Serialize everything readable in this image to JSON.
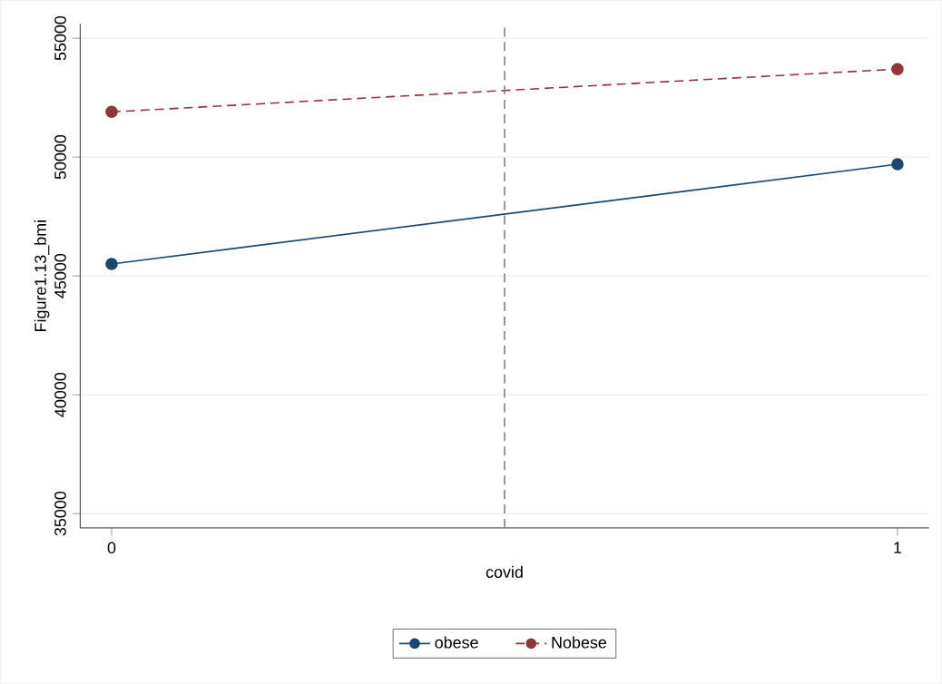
{
  "chart_data": {
    "type": "line",
    "xlabel": "covid",
    "ylabel": "Figure1.13_bmi",
    "x": [
      0,
      1
    ],
    "series": [
      {
        "name": "obese",
        "color": "#1a476f",
        "values": [
          45500,
          49700
        ],
        "line_style": "solid"
      },
      {
        "name": "Nobese",
        "color": "#90353b",
        "values": [
          51900,
          53700
        ],
        "line_style": "dashed"
      }
    ],
    "xlim": [
      -0.04,
      1.04
    ],
    "xticks": [
      0,
      1
    ],
    "ylim": [
      34400,
      55600
    ],
    "yticks": [
      35000,
      40000,
      45000,
      50000,
      55000
    ],
    "ref_lines": [
      {
        "axis": "x",
        "value": 0.5,
        "color": "#808080",
        "line_style": "dashed"
      }
    ],
    "grid": "y",
    "legend": "bottom",
    "marker": "circle"
  }
}
